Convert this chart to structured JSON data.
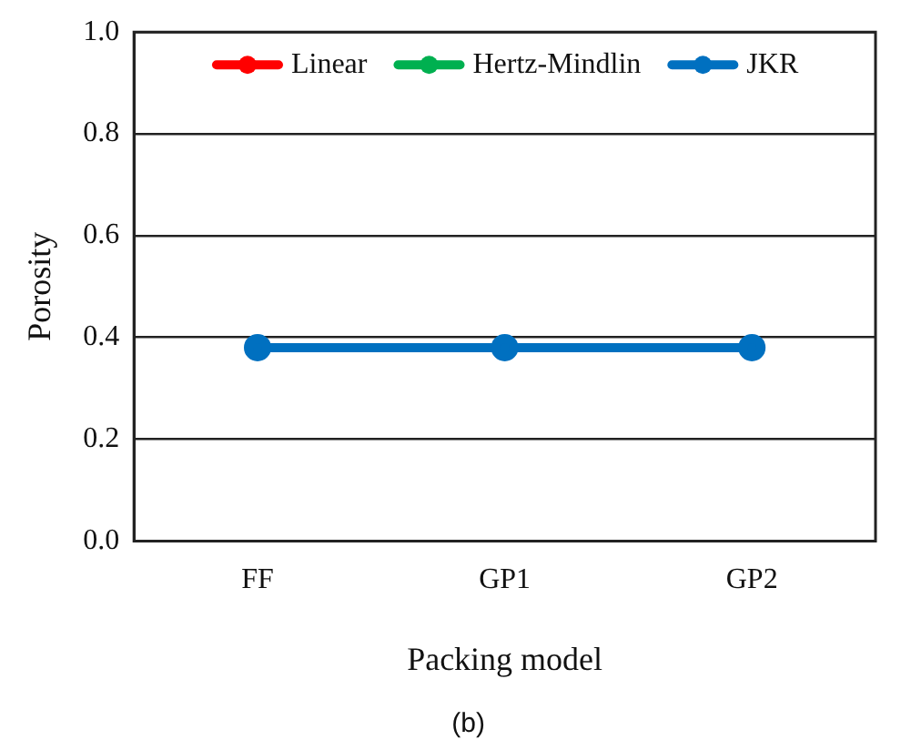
{
  "chart_data": {
    "type": "line",
    "xlabel": "Packing model",
    "ylabel": "Porosity",
    "categories": [
      "FF",
      "GP1",
      "GP2"
    ],
    "series": [
      {
        "name": "Linear",
        "color": "#ff0000",
        "values": [
          null,
          null,
          null
        ]
      },
      {
        "name": "Hertz-Mindlin",
        "color": "#00b050",
        "values": [
          null,
          null,
          null
        ]
      },
      {
        "name": "JKR",
        "color": "#0070c0",
        "values": [
          0.38,
          0.38,
          0.38
        ]
      }
    ],
    "ylim": [
      0,
      1
    ],
    "yticks": [
      {
        "value": 0,
        "label": "0.0"
      },
      0.2,
      0.4,
      0.6,
      0.8,
      {
        "value": 1,
        "label": "1.0"
      }
    ],
    "grid": "y",
    "legend": "top",
    "marker": "circle",
    "line_style": "solid",
    "annotations": [
      "(b)"
    ]
  }
}
